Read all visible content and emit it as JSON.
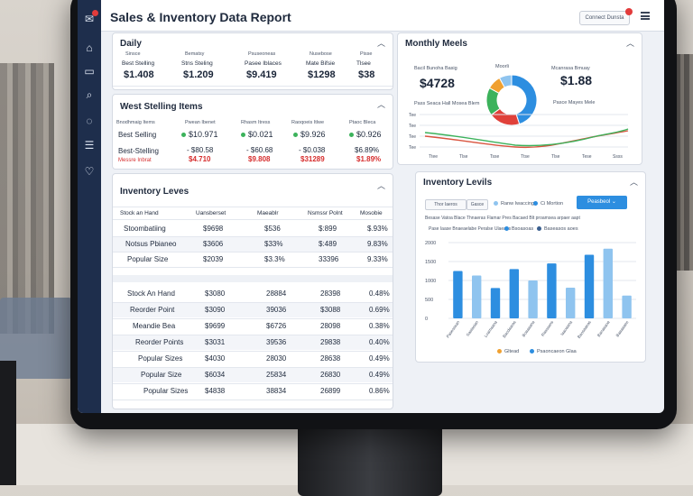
{
  "app": {
    "title": "Sales & Inventory Data Report",
    "connect_label": "Connect Dunsta"
  },
  "daily": {
    "title": "Daily",
    "columns": [
      {
        "label": "Sinsce",
        "sub": "Best Stelling",
        "value": "$1.408"
      },
      {
        "label": "Bematsy",
        "sub": "Stns Steling",
        "value": "$1.209"
      },
      {
        "label": "Psuseoneas",
        "sub": "Pasee Iblaces",
        "value": "$9.419"
      },
      {
        "label": "Nusebose",
        "sub": "Mate Bifsie",
        "value": "$1298"
      },
      {
        "label": "Pisse",
        "sub": "Tlsee",
        "value": "$38"
      }
    ]
  },
  "monthly": {
    "title": "Monthly Meels",
    "left_label": "Bacil Bunoha Basig",
    "left_value": "$4728",
    "donut_label": "Moorli",
    "right_label": "Mcanrasa Bmuay",
    "right_value": "$1.88",
    "right_sub": "Pasce Mayes Mele",
    "legend_top": "Pass Seaca Hall Mosea Blem",
    "y_ticks": [
      "Tee",
      "Tee",
      "Tee",
      "Tee"
    ],
    "x_ticks": [
      "Ttee",
      "Tlse",
      "Tsse",
      "Ttse",
      "Tlse",
      "Tese",
      "Ssss"
    ],
    "donut": [
      {
        "value": 45,
        "color": "#2d8ee0"
      },
      {
        "value": 20,
        "color": "#e0413a"
      },
      {
        "value": 18,
        "color": "#3cb25b"
      },
      {
        "value": 9,
        "color": "#f0a030"
      },
      {
        "value": 8,
        "color": "#8fc4ef"
      }
    ]
  },
  "best_selling": {
    "title": "West Stelling Items",
    "headers": [
      "Bnodhmaig Items",
      "Pwean Ibenet",
      "Rhasm Itress",
      "Raoqoeis Itlwe",
      "Ptaoc Bleca"
    ],
    "row1": {
      "label": "Best Selling",
      "values": [
        "$10.971",
        "$0.021",
        "$9.926",
        "$0.926"
      ]
    },
    "row2": {
      "label": "Best-Stelling",
      "sub": "Messre Inbrat",
      "values": [
        "- $80.58",
        "- $60.68",
        "- $0.038",
        "$6.89%"
      ],
      "subvalues": [
        "$4.710",
        "$9.808",
        "$31289",
        "$1.89%"
      ]
    }
  },
  "inventory_levels": {
    "title": "Inventory Leves",
    "headers": [
      "Stock an Hand",
      "Uansberset",
      "Maeablr",
      "Nsmssr Polnt",
      "Mosobie"
    ],
    "top_rows": [
      {
        "label": "Stoombatiing",
        "values": [
          "$9698",
          "$536",
          "$:899",
          "$.93%"
        ]
      },
      {
        "label": "Notsus Pbianeo",
        "values": [
          "$3606",
          "$33%",
          "$:489",
          "9.83%"
        ]
      },
      {
        "label": "Popular Size",
        "values": [
          "$2039",
          "$3.3%",
          "33396",
          "9.33%"
        ]
      }
    ],
    "bottom_rows": [
      {
        "label": "Stock An Hand",
        "values": [
          "$3080",
          "28884",
          "28398",
          "0.48%"
        ]
      },
      {
        "label": "Reorder Point",
        "values": [
          "$3090",
          "39036",
          "$3088",
          "0.69%"
        ]
      },
      {
        "label": "Meandie Bea",
        "values": [
          "$9699",
          "$6726",
          "28098",
          "0.38%"
        ]
      },
      {
        "label": "Reorder Points",
        "values": [
          "$3031",
          "39536",
          "29838",
          "0.40%"
        ]
      },
      {
        "label": "Popular Sizes",
        "values": [
          "$4030",
          "28030",
          "28638",
          "0.49%"
        ]
      },
      {
        "label": "Popular Size",
        "values": [
          "$6034",
          "25834",
          "26830",
          "0.49%"
        ]
      },
      {
        "label": "Popular Sizes",
        "values": [
          "$4838",
          "38834",
          "26899",
          "0.86%"
        ]
      }
    ]
  },
  "inventory_chart": {
    "title": "Inventory Levils",
    "filter_chip": "Thor Iaeros",
    "chip2": "Gasce",
    "legend_a": "Ranw Iwaccing",
    "legend_b": "Ci Mortion",
    "dropdown": "Peasbeol",
    "desc1": "Besase Vatoa Blace Thnaeras Flamar Pres Bacaed Blt proamsea arpaer aapt",
    "desc2": "Pase Iaase Bnaeaelabe Peralse Ulaeaes",
    "desc_legend1": "Bsoasoas",
    "desc_legend2": "Baseasos aoes",
    "y_ticks": [
      "2000",
      "1500",
      "1000",
      "500",
      "0"
    ],
    "footer_legend1": "Gltead",
    "footer_legend2": "Psaoncaeon Glaa"
  },
  "chart_data": {
    "type": "bar",
    "categories": [
      "Pasesssan",
      "Sastasian",
      "Loamaana",
      "Baodaaras",
      "Boaaaana",
      "Rasssans",
      "Iaaoaana",
      "Baosaaeas",
      "Banaaaoa",
      "Baaaaaee"
    ],
    "series": [
      {
        "name": "Bsoasoas",
        "values": [
          1250,
          0,
          800,
          1300,
          0,
          1450,
          0,
          1680,
          0,
          0
        ]
      },
      {
        "name": "Baseasos aoes",
        "values": [
          0,
          1130,
          0,
          0,
          1000,
          0,
          810,
          0,
          1840,
          600
        ]
      }
    ],
    "ylim": [
      0,
      2000
    ],
    "colors": {
      "primary": "#2d8ee0",
      "light": "#8fc4ef"
    }
  },
  "sidebar": {
    "items": [
      {
        "icon": "mail-icon"
      },
      {
        "icon": "home-icon"
      },
      {
        "icon": "card-icon"
      },
      {
        "icon": "search-icon"
      },
      {
        "icon": "chat-icon"
      },
      {
        "icon": "document-icon"
      },
      {
        "icon": "heart-icon"
      }
    ]
  }
}
